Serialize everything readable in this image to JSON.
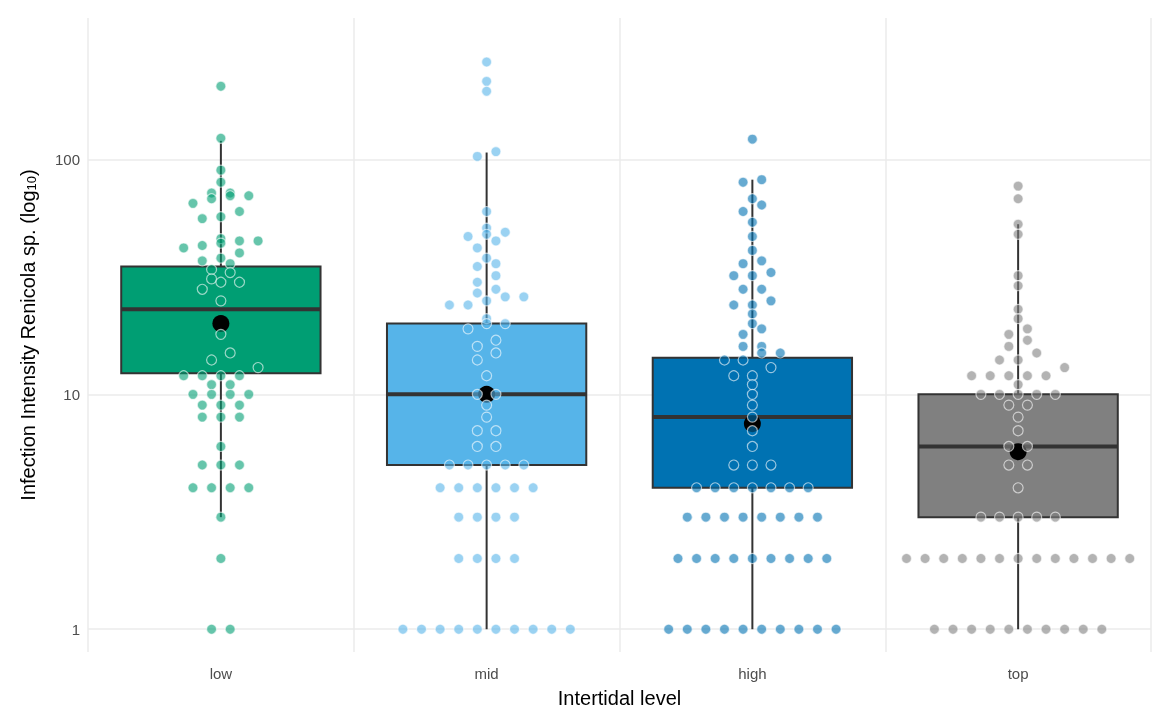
{
  "chart_data": {
    "type": "box",
    "xlabel": "Intertidal level",
    "ylabel": "Infection Intensity Renicola sp. (log$_{10}$)",
    "categories": [
      "low",
      "mid",
      "high",
      "top"
    ],
    "log": "y",
    "ylim": [
      0.8,
      400
    ],
    "yticks": [
      1,
      10,
      100
    ],
    "grid": true,
    "series": [
      {
        "colors": [
          "#009e73",
          "#56b4e9",
          "#0072b2",
          "#808080"
        ],
        "boxes": [
          {
            "low": 3,
            "q1": 12.3,
            "median": 23,
            "q3": 35,
            "high": 120,
            "mean": 20
          },
          {
            "low": 1,
            "q1": 5,
            "median": 10,
            "q3": 20,
            "high": 107,
            "mean": 10
          },
          {
            "low": 1,
            "q1": 4,
            "median": 8,
            "q3": 14.3,
            "high": 82,
            "mean": 7.5
          },
          {
            "low": 1,
            "q1": 3,
            "median": 6,
            "q3": 10,
            "high": 53,
            "mean": 5.7
          }
        ]
      },
      {
        "type": "scatter",
        "color": "#009e73",
        "x": [
          "low",
          "low",
          "low",
          "low",
          "low",
          "low",
          "low",
          "low",
          "low",
          "low",
          "low",
          "low",
          "low",
          "low",
          "low",
          "low",
          "low",
          "low",
          "low",
          "low",
          "low",
          "low",
          "low",
          "low",
          "low",
          "low",
          "low",
          "low",
          "low",
          "low",
          "low",
          "low",
          "low",
          "low",
          "low",
          "low",
          "low",
          "low",
          "low",
          "low",
          "low",
          "low",
          "low",
          "low",
          "low",
          "low",
          "low",
          "low",
          "low",
          "low",
          "low",
          "low",
          "low",
          "low",
          "low",
          "low",
          "low",
          "low",
          "low",
          "low",
          "low",
          "low"
        ],
        "values": [
          205,
          123,
          90,
          80,
          72,
          72,
          70,
          70,
          68,
          65,
          60,
          57,
          56,
          46,
          45,
          45,
          44,
          43,
          42,
          40,
          38,
          37,
          36,
          34,
          33,
          31,
          30,
          30,
          28,
          25,
          18,
          15,
          14,
          13,
          12,
          12,
          12,
          12,
          11,
          11,
          10,
          10,
          10,
          10,
          9,
          9,
          9,
          8,
          8,
          8,
          6,
          5,
          5,
          5,
          4,
          4,
          4,
          4,
          3,
          2,
          1,
          1
        ]
      },
      {
        "type": "scatter",
        "color": "#56b4e9",
        "x": [
          "mid",
          "mid",
          "mid",
          "mid",
          "mid",
          "mid",
          "mid",
          "mid",
          "mid",
          "mid",
          "mid",
          "mid",
          "mid",
          "mid",
          "mid",
          "mid",
          "mid",
          "mid",
          "mid",
          "mid",
          "mid",
          "mid",
          "mid",
          "mid",
          "mid",
          "mid",
          "mid",
          "mid",
          "mid",
          "mid",
          "mid",
          "mid",
          "mid",
          "mid",
          "mid",
          "mid",
          "mid",
          "mid",
          "mid",
          "mid",
          "mid",
          "mid",
          "mid",
          "mid",
          "mid",
          "mid",
          "mid",
          "mid",
          "mid",
          "mid",
          "mid",
          "mid",
          "mid",
          "mid",
          "mid",
          "mid",
          "mid",
          "mid",
          "mid",
          "mid",
          "mid",
          "mid",
          "mid",
          "mid",
          "mid",
          "mid",
          "mid",
          "mid",
          "mid",
          "mid"
        ],
        "values": [
          260,
          215,
          195,
          108,
          103,
          60,
          51,
          49,
          48,
          47,
          45,
          42,
          38,
          36,
          35,
          32,
          30,
          28,
          27,
          26,
          26,
          25,
          24,
          24,
          21,
          20,
          20,
          19,
          17,
          16,
          15,
          14,
          12,
          10,
          10,
          9,
          8,
          7,
          7,
          6,
          6,
          5,
          5,
          5,
          5,
          5,
          4,
          4,
          4,
          4,
          4,
          4,
          3,
          3,
          3,
          3,
          2,
          2,
          2,
          2,
          1,
          1,
          1,
          1,
          1,
          1,
          1,
          1,
          1,
          1
        ]
      },
      {
        "type": "scatter",
        "color": "#0072b2",
        "x": [
          "high",
          "high",
          "high",
          "high",
          "high",
          "high",
          "high",
          "high",
          "high",
          "high",
          "high",
          "high",
          "high",
          "high",
          "high",
          "high",
          "high",
          "high",
          "high",
          "high",
          "high",
          "high",
          "high",
          "high",
          "high",
          "high",
          "high",
          "high",
          "high",
          "high",
          "high",
          "high",
          "high",
          "high",
          "high",
          "high",
          "high",
          "high",
          "high",
          "high",
          "high",
          "high",
          "high",
          "high",
          "high",
          "high",
          "high",
          "high",
          "high",
          "high",
          "high",
          "high",
          "high",
          "high",
          "high",
          "high",
          "high",
          "high",
          "high",
          "high",
          "high",
          "high",
          "high",
          "high",
          "high",
          "high",
          "high",
          "high",
          "high",
          "high",
          "high",
          "high",
          "high",
          "high",
          "high"
        ],
        "values": [
          122,
          82,
          80,
          68,
          64,
          60,
          54,
          47,
          41,
          37,
          36,
          33,
          32,
          32,
          28,
          28,
          25,
          24,
          24,
          22,
          20,
          19,
          18,
          16,
          16,
          15,
          15,
          14,
          14,
          13,
          12,
          12,
          11,
          10,
          9,
          8,
          7,
          6,
          5,
          5,
          5,
          4,
          4,
          4,
          4,
          4,
          4,
          4,
          3,
          3,
          3,
          3,
          3,
          3,
          3,
          3,
          2,
          2,
          2,
          2,
          2,
          2,
          2,
          2,
          2,
          1,
          1,
          1,
          1,
          1,
          1,
          1,
          1,
          1,
          1
        ]
      },
      {
        "type": "scatter",
        "color": "#808080",
        "x": [
          "top",
          "top",
          "top",
          "top",
          "top",
          "top",
          "top",
          "top",
          "top",
          "top",
          "top",
          "top",
          "top",
          "top",
          "top",
          "top",
          "top",
          "top",
          "top",
          "top",
          "top",
          "top",
          "top",
          "top",
          "top",
          "top",
          "top",
          "top",
          "top",
          "top",
          "top",
          "top",
          "top",
          "top",
          "top",
          "top",
          "top",
          "top",
          "top",
          "top",
          "top",
          "top",
          "top",
          "top",
          "top",
          "top",
          "top",
          "top",
          "top",
          "top",
          "top",
          "top",
          "top",
          "top",
          "top",
          "top",
          "top",
          "top",
          "top",
          "top",
          "top",
          "top",
          "top",
          "top"
        ],
        "values": [
          77,
          68,
          53,
          48,
          32,
          29,
          23,
          21,
          19,
          18,
          17,
          16,
          15,
          14,
          14,
          13,
          12,
          12,
          12,
          12,
          12,
          11,
          10,
          10,
          10,
          10,
          10,
          9,
          9,
          8,
          7,
          6,
          6,
          5,
          5,
          4,
          3,
          3,
          3,
          3,
          3,
          2,
          2,
          2,
          2,
          2,
          2,
          2,
          2,
          2,
          2,
          2,
          2,
          2,
          1,
          1,
          1,
          1,
          1,
          1,
          1,
          1,
          1,
          1
        ]
      }
    ]
  }
}
